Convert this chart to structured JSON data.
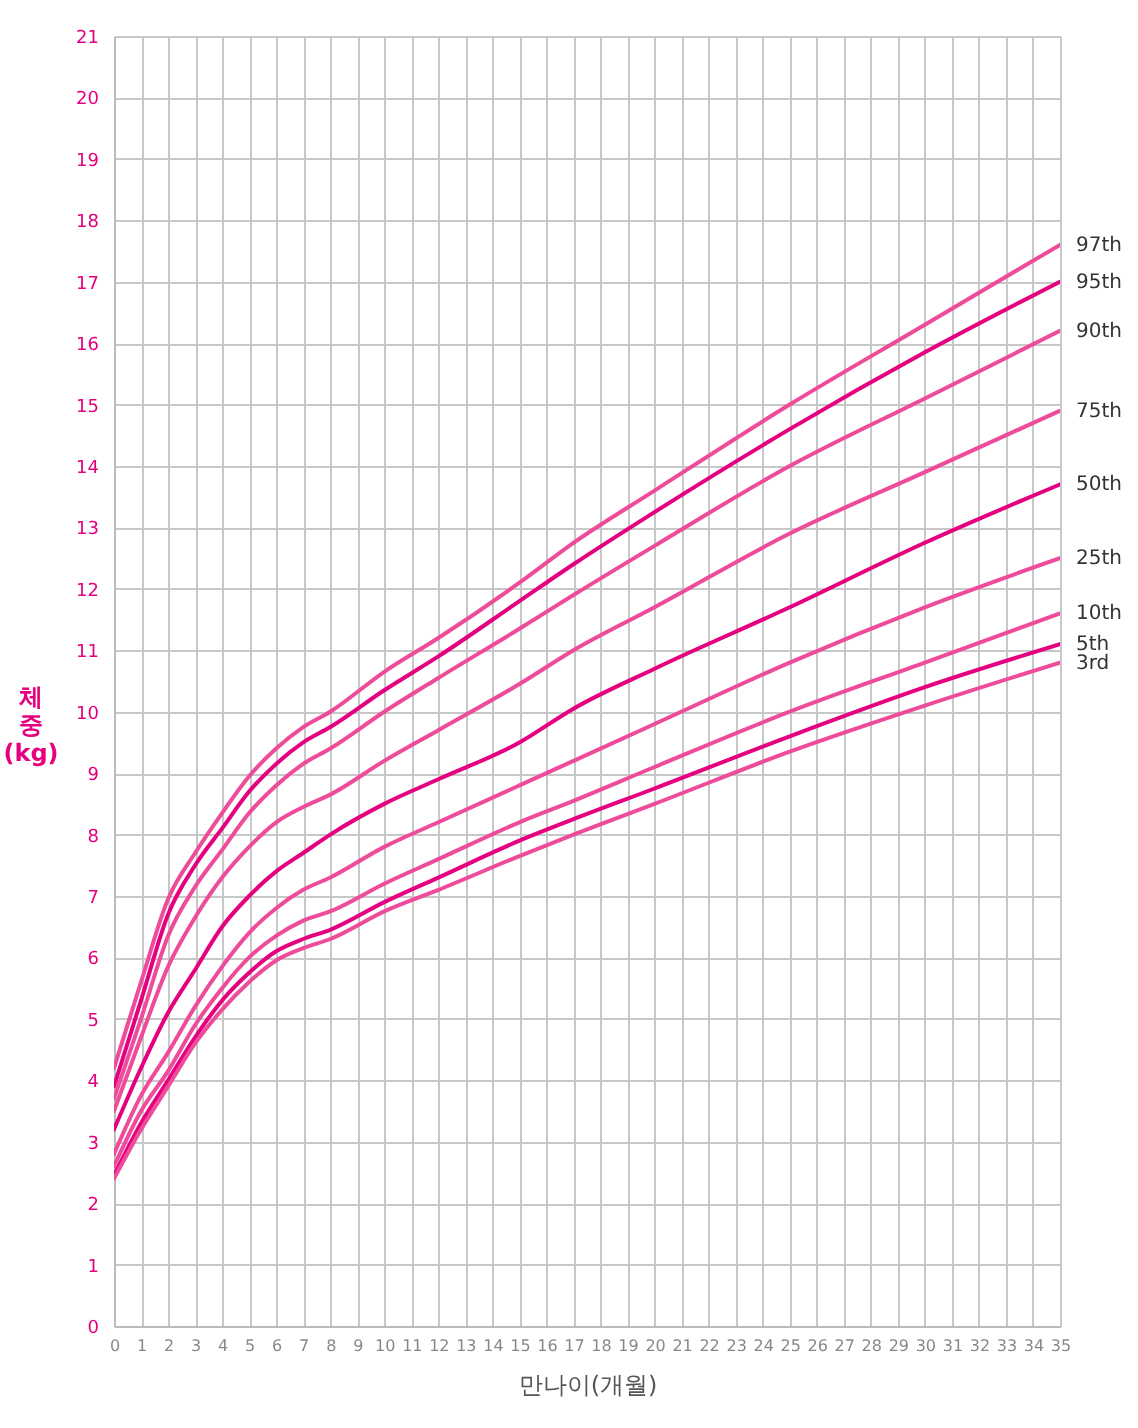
{
  "chart_data": {
    "type": "line",
    "xlabel": "만나이(개월)",
    "ylabel": "체중(kg)",
    "x": [
      0,
      1,
      2,
      3,
      4,
      5,
      6,
      7,
      8,
      10,
      12,
      15,
      17,
      20,
      25,
      30,
      35
    ],
    "series": [
      {
        "name": "97th",
        "color": "#ee4c9a",
        "values": [
          4.2,
          5.6,
          6.95,
          7.7,
          8.35,
          8.95,
          9.4,
          9.75,
          10.0,
          10.65,
          11.2,
          12.1,
          12.75,
          13.6,
          15.0,
          16.3,
          17.6
        ]
      },
      {
        "name": "95th",
        "color": "#e4007f",
        "values": [
          3.9,
          5.3,
          6.7,
          7.5,
          8.1,
          8.7,
          9.15,
          9.5,
          9.75,
          10.35,
          10.9,
          11.8,
          12.4,
          13.25,
          14.6,
          15.85,
          17.0
        ]
      },
      {
        "name": "90th",
        "color": "#ee4c9a",
        "values": [
          3.7,
          5.0,
          6.35,
          7.15,
          7.75,
          8.35,
          8.8,
          9.15,
          9.4,
          10.0,
          10.55,
          11.35,
          11.9,
          12.7,
          14.0,
          15.1,
          16.2
        ]
      },
      {
        "name": "75th",
        "color": "#ee4c9a",
        "values": [
          3.5,
          4.7,
          5.85,
          6.65,
          7.3,
          7.8,
          8.2,
          8.45,
          8.65,
          9.2,
          9.7,
          10.45,
          11.0,
          11.7,
          12.9,
          13.9,
          14.9
        ]
      },
      {
        "name": "50th",
        "color": "#e4007f",
        "values": [
          3.2,
          4.2,
          5.1,
          5.8,
          6.5,
          7.0,
          7.4,
          7.7,
          8.0,
          8.5,
          8.9,
          9.5,
          10.05,
          10.7,
          11.7,
          12.75,
          13.7
        ]
      },
      {
        "name": "25th",
        "color": "#ee4c9a",
        "values": [
          2.8,
          3.75,
          4.45,
          5.2,
          5.85,
          6.4,
          6.8,
          7.1,
          7.3,
          7.8,
          8.2,
          8.8,
          9.2,
          9.8,
          10.8,
          11.7,
          12.5
        ]
      },
      {
        "name": "10th",
        "color": "#ee4c9a",
        "values": [
          2.6,
          3.5,
          4.15,
          4.9,
          5.5,
          6.0,
          6.35,
          6.6,
          6.75,
          7.2,
          7.6,
          8.2,
          8.55,
          9.1,
          10.0,
          10.8,
          11.6
        ]
      },
      {
        "name": "5th",
        "color": "#e4007f",
        "values": [
          2.45,
          3.3,
          4.0,
          4.7,
          5.3,
          5.75,
          6.1,
          6.3,
          6.45,
          6.9,
          7.3,
          7.9,
          8.25,
          8.75,
          9.6,
          10.4,
          11.1
        ]
      },
      {
        "name": "3rd",
        "color": "#ee4c9a",
        "values": [
          2.4,
          3.2,
          3.9,
          4.6,
          5.15,
          5.6,
          5.95,
          6.15,
          6.3,
          6.75,
          7.1,
          7.65,
          8.0,
          8.5,
          9.35,
          10.1,
          10.8
        ]
      }
    ],
    "xlim": [
      0,
      35
    ],
    "xticks": [
      0,
      1,
      2,
      3,
      4,
      5,
      6,
      7,
      8,
      9,
      10,
      11,
      12,
      13,
      14,
      15,
      16,
      17,
      18,
      19,
      20,
      21,
      22,
      23,
      24,
      25,
      26,
      27,
      28,
      29,
      30,
      31,
      32,
      33,
      34,
      35
    ],
    "ylim": [
      0,
      21
    ],
    "yticks": [
      0,
      1,
      2,
      3,
      4,
      5,
      6,
      7,
      8,
      9,
      10,
      11,
      12,
      13,
      14,
      15,
      16,
      17,
      18,
      19,
      20,
      21
    ],
    "grid": true,
    "legend": "right",
    "marker": "none",
    "line_style": "solid"
  }
}
